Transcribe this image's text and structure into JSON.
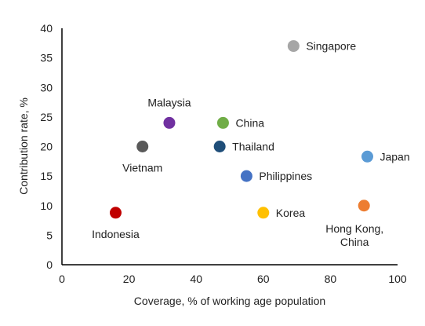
{
  "chart_data": {
    "type": "scatter",
    "title": "",
    "xlabel": "Coverage, % of working age population",
    "ylabel": "Contribution rate, %",
    "xlim": [
      0,
      100
    ],
    "ylim": [
      0,
      40
    ],
    "xticks": [
      0,
      20,
      40,
      60,
      80,
      100
    ],
    "yticks": [
      0,
      5,
      10,
      15,
      20,
      25,
      30,
      35,
      40
    ],
    "grid": false,
    "legend": "none",
    "points": [
      {
        "label": "Singapore",
        "x": 69,
        "y": 37,
        "color": "#a6a6a6",
        "label_pos": "right"
      },
      {
        "label": "Malaysia",
        "x": 32,
        "y": 24,
        "color": "#7030a0",
        "label_pos": "above"
      },
      {
        "label": "China",
        "x": 48,
        "y": 24,
        "color": "#70ad47",
        "label_pos": "right"
      },
      {
        "label": "Vietnam",
        "x": 24,
        "y": 20,
        "color": "#595959",
        "label_pos": "below"
      },
      {
        "label": "Thailand",
        "x": 47,
        "y": 20,
        "color": "#1f4e79",
        "label_pos": "right"
      },
      {
        "label": "Japan",
        "x": 91,
        "y": 18.3,
        "color": "#5b9bd5",
        "label_pos": "right"
      },
      {
        "label": "Philippines",
        "x": 55,
        "y": 15,
        "color": "#4472c4",
        "label_pos": "right"
      },
      {
        "label": "Indonesia",
        "x": 16,
        "y": 8.8,
        "color": "#c00000",
        "label_pos": "below"
      },
      {
        "label": "Korea",
        "x": 60,
        "y": 8.8,
        "color": "#ffc000",
        "label_pos": "right"
      },
      {
        "label": "Hong Kong, China",
        "x": 90,
        "y": 10,
        "color": "#ed7d31",
        "label_pos": "below-multiline"
      }
    ]
  }
}
